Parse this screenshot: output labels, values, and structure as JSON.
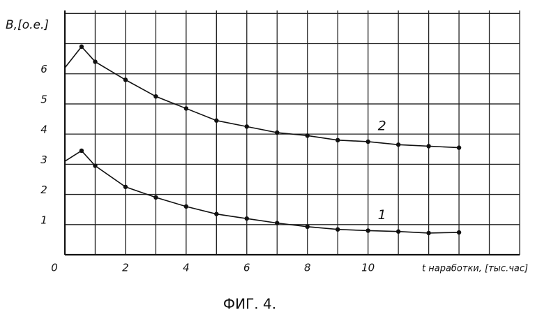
{
  "chart_data": {
    "type": "line",
    "y_label": "B,[o.e.]",
    "x_label": "t наработки, [тыс.час]",
    "caption": "ФИГ. 4.",
    "x": [
      0,
      0.55,
      1,
      2,
      3,
      4,
      5,
      6,
      7,
      8,
      9,
      10,
      11,
      12,
      13
    ],
    "series": [
      {
        "name": "2",
        "color": "#111111",
        "values": [
          6.2,
          6.9,
          6.4,
          5.8,
          5.25,
          4.85,
          4.45,
          4.25,
          4.05,
          3.95,
          3.8,
          3.75,
          3.65,
          3.6,
          3.55
        ]
      },
      {
        "name": "1",
        "color": "#111111",
        "values": [
          3.1,
          3.45,
          2.95,
          2.25,
          1.9,
          1.6,
          1.35,
          1.2,
          1.05,
          0.93,
          0.84,
          0.8,
          0.77,
          0.72,
          0.74
        ]
      }
    ],
    "xlim": [
      0,
      15
    ],
    "ylim": [
      0,
      8.1
    ],
    "xticks": [
      0,
      2,
      4,
      6,
      8,
      10
    ],
    "yticks": [
      1,
      2,
      3,
      4,
      5,
      6
    ],
    "grid": true
  }
}
